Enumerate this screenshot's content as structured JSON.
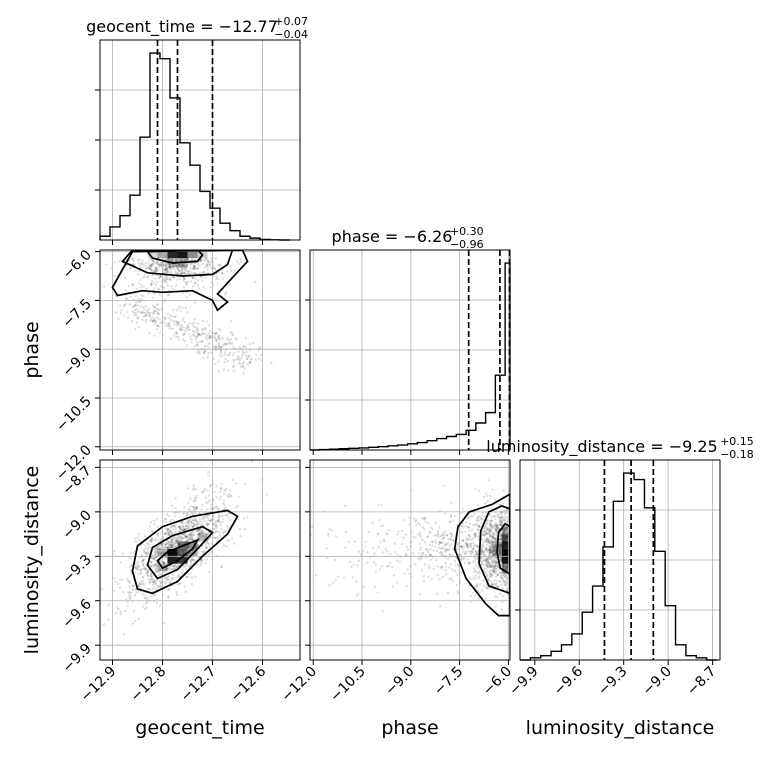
{
  "chart_data": {
    "type": "corner",
    "parameters": [
      "geocent_time",
      "phase",
      "luminosity_distance"
    ],
    "axes": {
      "geocent_time": {
        "range": [
          -12.925,
          -12.525
        ],
        "ticks": [
          -12.9,
          -12.8,
          -12.7,
          -12.6
        ],
        "tick_labels": [
          "−12.9",
          "−12.8",
          "−12.7",
          "−12.6"
        ]
      },
      "phase": {
        "range": [
          -12.1,
          -5.95
        ],
        "ticks": [
          -12.0,
          -10.5,
          -9.0,
          -7.5,
          -6.0
        ],
        "tick_labels": [
          "−12.0",
          "−10.5",
          "−9.0",
          "−7.5",
          "−6.0"
        ]
      },
      "luminosity_distance": {
        "range": [
          -10.0,
          -8.65
        ],
        "ticks": [
          -9.9,
          -9.6,
          -9.3,
          -9.0,
          -8.7
        ],
        "tick_labels": [
          "−9.9",
          "−9.6",
          "−9.3",
          "−9.0",
          "−8.7"
        ]
      }
    },
    "titles": [
      {
        "param": "geocent_time",
        "prefix": "geocent_time = −12.77",
        "plus": "+0.07",
        "minus": "−0.04"
      },
      {
        "param": "phase",
        "prefix": "phase = −6.26",
        "plus": "+0.30",
        "minus": "−0.96"
      },
      {
        "param": "luminosity_distance",
        "prefix": "luminosity_distance = −9.25",
        "plus": "+0.15",
        "minus": "−0.18"
      }
    ],
    "medians": {
      "geocent_time": -12.77,
      "phase": -6.26,
      "luminosity_distance": -9.25
    },
    "quantiles": {
      "geocent_time": [
        -12.81,
        -12.77,
        -12.7
      ],
      "phase": [
        -7.22,
        -6.26,
        -5.96
      ],
      "luminosity_distance": [
        -9.43,
        -9.25,
        -9.1
      ]
    },
    "histograms": {
      "geocent_time": {
        "edges": [
          -12.925,
          -12.905,
          -12.885,
          -12.865,
          -12.845,
          -12.825,
          -12.805,
          -12.785,
          -12.765,
          -12.745,
          -12.725,
          -12.705,
          -12.685,
          -12.665,
          -12.645,
          -12.625,
          -12.605,
          -12.585,
          -12.565,
          -12.545
        ],
        "counts": [
          2,
          7,
          13,
          24,
          55,
          100,
          97,
          76,
          52,
          40,
          26,
          17,
          9,
          5,
          2,
          1,
          0.3,
          0.1,
          0
        ]
      },
      "phase": {
        "edges": [
          -12.1,
          -11.8,
          -11.5,
          -11.2,
          -10.9,
          -10.6,
          -10.3,
          -10.0,
          -9.7,
          -9.4,
          -9.1,
          -8.8,
          -8.5,
          -8.2,
          -7.9,
          -7.6,
          -7.3,
          -7.0,
          -6.7,
          -6.4,
          -6.1,
          -5.95
        ],
        "counts": [
          0,
          0.2,
          0.4,
          0.6,
          0.8,
          1,
          1.3,
          1.6,
          2,
          2.4,
          3,
          3.6,
          4.5,
          5.5,
          6.5,
          7.5,
          9.5,
          13,
          18,
          36,
          90
        ]
      },
      "luminosity_distance": {
        "edges": [
          -10.0,
          -9.93,
          -9.86,
          -9.79,
          -9.72,
          -9.65,
          -9.58,
          -9.51,
          -9.44,
          -9.37,
          -9.3,
          -9.23,
          -9.16,
          -9.09,
          -9.02,
          -8.95,
          -8.88,
          -8.81,
          -8.74,
          -8.67
        ],
        "counts": [
          0,
          1,
          2,
          4,
          7,
          12,
          22,
          34,
          52,
          73,
          86,
          83,
          70,
          50,
          25,
          7,
          2,
          1,
          0
        ]
      }
    },
    "grid": true,
    "legend": "none"
  }
}
